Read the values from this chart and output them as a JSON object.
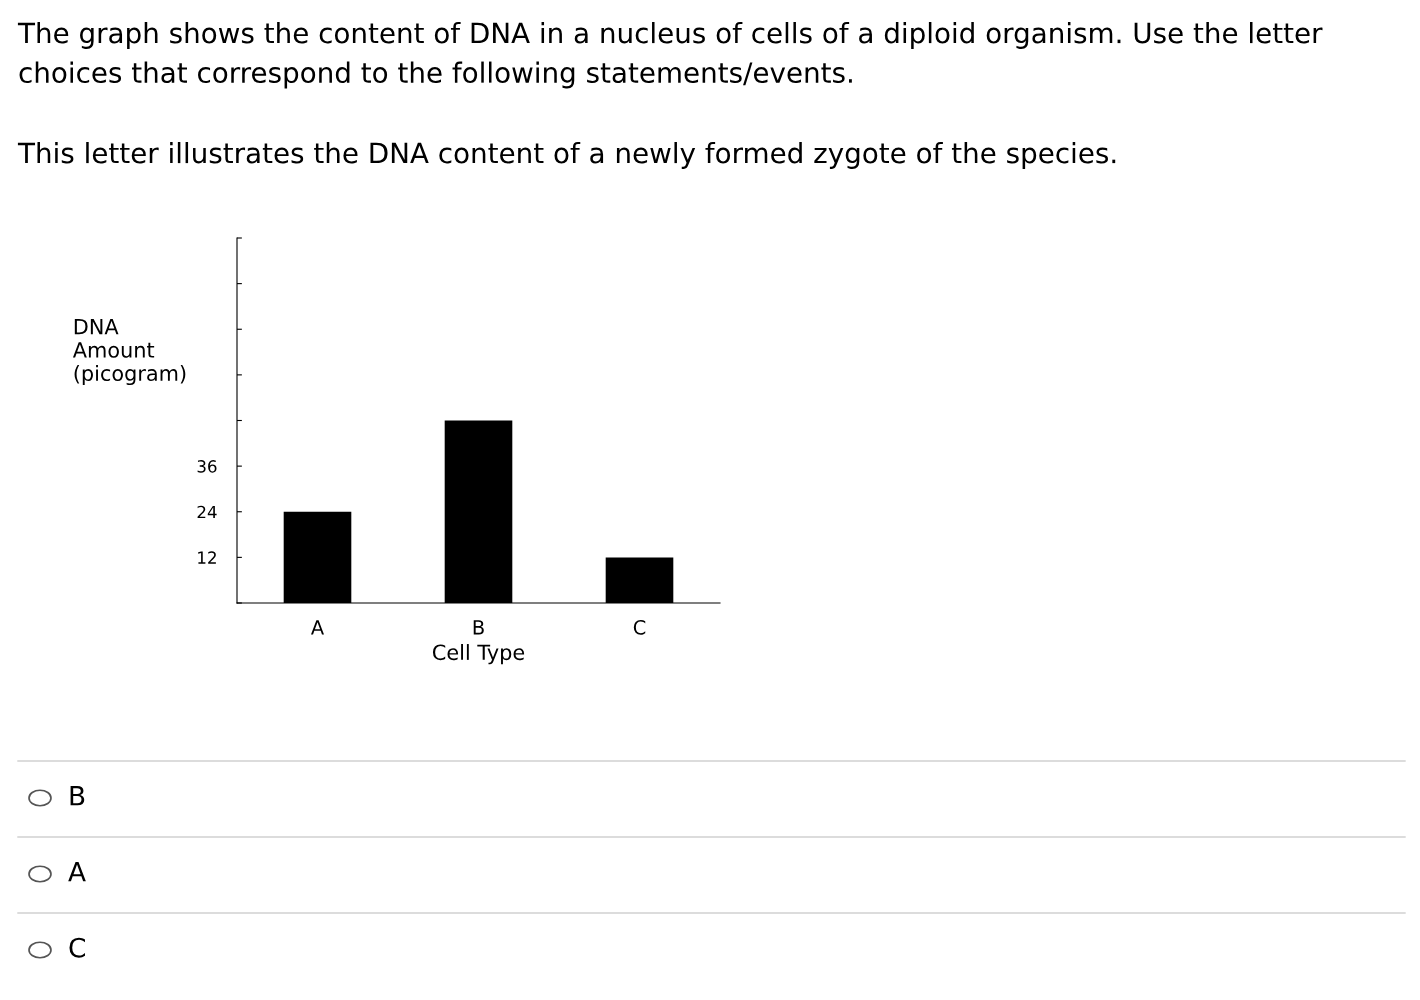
{
  "chart_data": {
    "type": "bar",
    "title": "The graph shows the content of DNA in a nucleus of cells of a diploid organism. Use the letter choices that correspond to the following statements/events.",
    "subtitle": "This letter illustrates the DNA content of a newly formed zygote of the species.",
    "xlabel": "Cell Type",
    "ylabel": "DNA\nAmount\n(picogram)",
    "categories": [
      "A",
      "B",
      "C"
    ],
    "values": [
      24,
      48,
      12
    ],
    "color": "#000000",
    "ylim": [
      0,
      96
    ],
    "yticks": [
      {
        "value": 0,
        "label": null
      },
      12,
      24,
      36,
      {
        "value": 48,
        "label": null
      },
      {
        "value": 60,
        "label": null
      },
      {
        "value": 72,
        "label": null
      },
      {
        "value": 84,
        "label": null
      },
      {
        "value": 96,
        "label": null
      }
    ],
    "grid": false,
    "annotations": [
      "B",
      "A",
      "C"
    ]
  }
}
